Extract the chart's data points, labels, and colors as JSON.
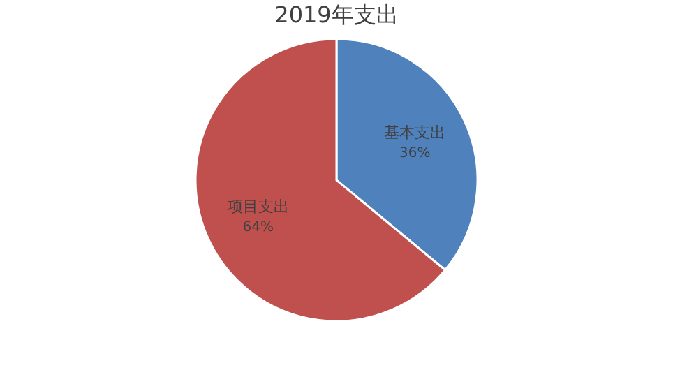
{
  "chart_data": {
    "type": "pie",
    "title": "2019年支出",
    "categories": [
      "基本支出",
      "项目支出"
    ],
    "values": [
      36,
      64
    ],
    "colors": [
      "#4f81bd",
      "#c0504d"
    ],
    "value_labels": [
      "36%",
      "64%"
    ],
    "legend": false
  }
}
